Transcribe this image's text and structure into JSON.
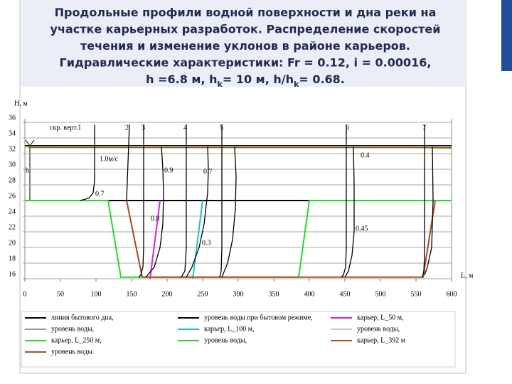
{
  "chart_data": {
    "type": "line",
    "title": [
      [
        "Продольные профили водной поверхности и дна реки на"
      ],
      [
        "участке карьерных разработок. Распределение скоростей"
      ],
      [
        "течения и изменение уклонов в районе карьеров."
      ],
      [
        "Гидравлические характеристики: Fr = 0.12, i = 0.00016,"
      ],
      [
        "h =6.8 м, h",
        "k",
        "= 10 м, h/h",
        "k",
        "= 0.68."
      ]
    ],
    "y_label": "H, м",
    "x_label": "L, м",
    "depth_label": "h",
    "vertical_labels": [
      "скр. верт.1",
      "2",
      "3",
      "4",
      "5",
      "6",
      "7"
    ],
    "annotations": [
      "1.0м/с",
      "0.7",
      "0.9",
      "0.7",
      "0.8",
      "0.3",
      "0.4",
      "0.45"
    ],
    "xlim": [
      0,
      600
    ],
    "xticks": [
      0,
      50,
      100,
      150,
      200,
      250,
      300,
      350,
      400,
      450,
      500,
      550,
      600
    ],
    "ylim": [
      16,
      36
    ],
    "yticks": [
      16,
      18,
      20,
      22,
      24,
      26,
      28,
      30,
      32,
      34,
      36
    ],
    "grid": true,
    "series": [
      {
        "name": "линия бытового дна,",
        "color": "#000000",
        "x": [
          0,
          600
        ],
        "values": [
          26,
          26
        ]
      },
      {
        "name": "уровень воды при бытовом режиме,",
        "color": "#000000",
        "x": [
          0,
          600
        ],
        "values": [
          33,
          33
        ]
      },
      {
        "name": "карьер, L_50 м,",
        "color": "#e020e0",
        "x": [
          190,
          176
        ],
        "values": [
          26,
          16
        ]
      },
      {
        "name": "уровень воды,",
        "color": "#9a9a9a",
        "x": [
          0,
          600
        ],
        "values": [
          32.9,
          32.9
        ]
      },
      {
        "name": "карьер, L_100 м,",
        "color": "#20c0d0",
        "x": [
          250,
          236
        ],
        "values": [
          26,
          16
        ]
      },
      {
        "name": "уровень воды,",
        "color": "#c8c8c8",
        "x": [
          0,
          600
        ],
        "values": [
          32.9,
          32.9
        ]
      },
      {
        "name": "карьер, L_250 м,",
        "color": "#22dd22",
        "x": [
          0,
          117,
          135,
          385,
          400,
          600
        ],
        "values": [
          26,
          26,
          16.2,
          16.2,
          26,
          26
        ]
      },
      {
        "name": "уровень воды,",
        "color": "#33cc33",
        "x": [
          0,
          165,
          550,
          600
        ],
        "values": [
          32.9,
          32.8,
          32.8,
          32.7
        ]
      },
      {
        "name": "карьер, L_392 м",
        "color": "#b5471b",
        "x": [
          143,
          165,
          560,
          577
        ],
        "values": [
          26,
          16.2,
          16.2,
          26
        ]
      },
      {
        "name": "уровень воды.",
        "color": "#a0522d",
        "x": [
          5,
          600
        ],
        "values": [
          32.8,
          32.8
        ]
      },
      {
        "color": "#000000",
        "x": [
          98,
          98,
          96,
          90,
          78
        ],
        "values": [
          35.7,
          28.5,
          27,
          26.3,
          26
        ]
      },
      {
        "color": "#000000",
        "x": [
          147,
          143
        ],
        "values": [
          35.7,
          26
        ]
      },
      {
        "color": "#000000",
        "x": [
          167,
          167,
          166,
          163,
          160
        ],
        "values": [
          35.7,
          20,
          17.5,
          16.5,
          16.2
        ]
      },
      {
        "color": "#000000",
        "x": [
          192,
          194,
          195,
          194,
          190,
          182,
          170
        ],
        "values": [
          32.9,
          30,
          27,
          23,
          20,
          17.5,
          16.2
        ]
      },
      {
        "color": "#000000",
        "x": [
          227,
          227,
          225,
          220
        ],
        "values": [
          35.7,
          20,
          17,
          16.2
        ]
      },
      {
        "color": "#000000",
        "x": [
          257,
          258,
          257,
          252,
          245,
          235,
          227
        ],
        "values": [
          32.9,
          30,
          27,
          23,
          20,
          17.5,
          16.2
        ]
      },
      {
        "color": "#000000",
        "x": [
          277,
          277,
          276,
          274
        ],
        "values": [
          35.7,
          20,
          17,
          16.2
        ]
      },
      {
        "color": "#000000",
        "x": [
          295,
          297,
          296,
          292,
          285,
          277
        ],
        "values": [
          32.9,
          29,
          25,
          21,
          18,
          16.2
        ]
      },
      {
        "color": "#000000",
        "x": [
          452,
          452,
          451,
          448,
          445
        ],
        "values": [
          35.7,
          20,
          17.5,
          16.5,
          16.2
        ]
      },
      {
        "color": "#000000",
        "x": [
          462,
          463,
          463,
          460,
          455,
          450
        ],
        "values": [
          32.9,
          28,
          22,
          19,
          17,
          16.2
        ]
      },
      {
        "color": "#000000",
        "x": [
          562,
          562,
          561,
          559
        ],
        "values": [
          35.7,
          19,
          17,
          16.2
        ]
      },
      {
        "color": "#000000",
        "x": [
          573,
          574,
          572,
          566,
          562
        ],
        "values": [
          32.9,
          26,
          20,
          17.5,
          16.5
        ]
      }
    ]
  }
}
